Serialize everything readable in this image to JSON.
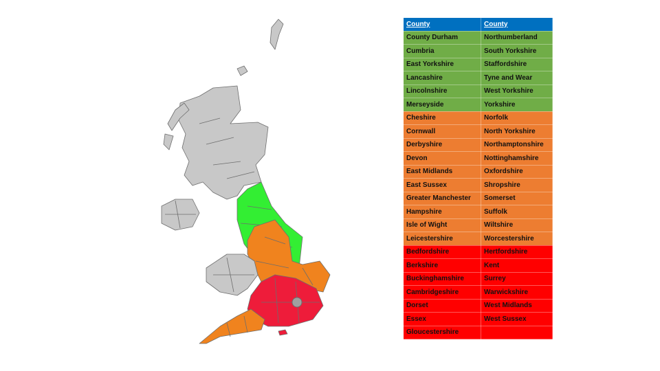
{
  "table": {
    "header": [
      "County",
      "County"
    ],
    "sections": [
      {
        "color": "#70ad47",
        "rows": [
          [
            "County Durham",
            "Northumberland"
          ],
          [
            "Cumbria",
            "South Yorkshire"
          ],
          [
            "East Yorkshire",
            "Staffordshire"
          ],
          [
            "Lancashire",
            "Tyne and Wear"
          ],
          [
            "Lincolnshire",
            "West Yorkshire"
          ],
          [
            "Merseyside",
            "Yorkshire"
          ]
        ]
      },
      {
        "color": "#ed7d31",
        "rows": [
          [
            "Cheshire",
            "Norfolk"
          ],
          [
            "Cornwall",
            "North Yorkshire"
          ],
          [
            "Derbyshire",
            "Northamptonshire"
          ],
          [
            "Devon",
            "Nottinghamshire"
          ],
          [
            "East Midlands",
            "Oxfordshire"
          ],
          [
            "East Sussex",
            "Shropshire"
          ],
          [
            "Greater Manchester",
            "Somerset"
          ],
          [
            "Hampshire",
            "Suffolk"
          ],
          [
            "Isle of Wight",
            "Wiltshire"
          ],
          [
            "Leicestershire",
            "Worcestershire"
          ]
        ]
      },
      {
        "color": "#ff0000",
        "rows": [
          [
            "Bedfordshire",
            "Hertfordshire"
          ],
          [
            "Berkshire",
            "Kent"
          ],
          [
            "Buckinghamshire",
            "Surrey"
          ],
          [
            "Cambridgeshire",
            "Warwickshire"
          ],
          [
            "Dorset",
            "West Midlands"
          ],
          [
            "Essex",
            "West Sussex"
          ],
          [
            "Gloucestershire"
          ]
        ]
      }
    ]
  }
}
